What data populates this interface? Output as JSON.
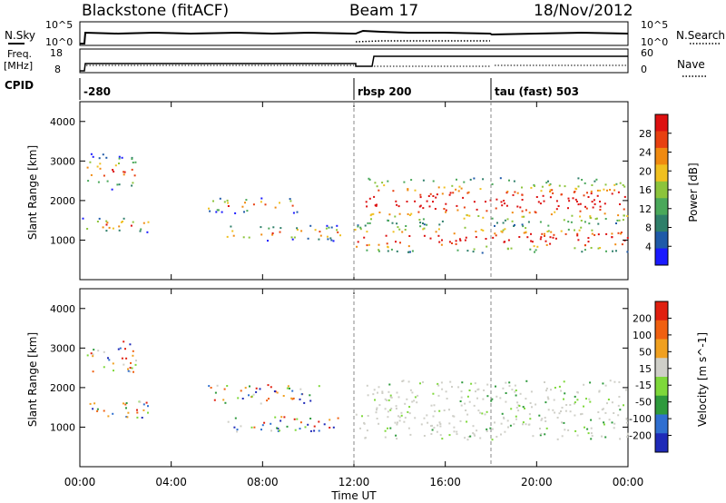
{
  "header": {
    "station": "Blackstone (fitACF)",
    "beam": "Beam 17",
    "date": "18/Nov/2012"
  },
  "sky_panel": {
    "left_label": "N.Sky",
    "right_label": "N.Search",
    "left_ticks": [
      "10^5",
      "10^0"
    ],
    "right_ticks": [
      "10^5",
      "10^0"
    ]
  },
  "freq_panel": {
    "left_label_line1": "Freq.",
    "left_label_line2": "[MHz]",
    "right_label": "Nave",
    "left_ticks": [
      "18",
      "8"
    ],
    "right_ticks": [
      "60",
      "0"
    ]
  },
  "cpid_panel": {
    "label": "CPID",
    "segments": [
      {
        "start_hour": 0,
        "text": "-280"
      },
      {
        "start_hour": 12,
        "text": "rbsp 200"
      },
      {
        "start_hour": 18,
        "text": "tau (fast) 503"
      }
    ]
  },
  "time_axis": {
    "label": "Time UT",
    "range_hours": [
      0,
      24
    ],
    "ticks": [
      {
        "hour": 0,
        "label": "00:00"
      },
      {
        "hour": 4,
        "label": "04:00"
      },
      {
        "hour": 8,
        "label": "08:00"
      },
      {
        "hour": 12,
        "label": "12:00"
      },
      {
        "hour": 16,
        "label": "16:00"
      },
      {
        "hour": 20,
        "label": "20:00"
      },
      {
        "hour": 24,
        "label": "00:00"
      }
    ]
  },
  "chart_data": [
    {
      "type": "heatmap",
      "ylabel": "Slant Range [km]",
      "ylim": [
        0,
        4500
      ],
      "yticks": [
        1000,
        2000,
        3000,
        4000
      ],
      "colorbar": {
        "label": "Power [dB]",
        "range": [
          0,
          32
        ],
        "ticks": [
          4,
          8,
          12,
          16,
          20,
          24,
          28
        ],
        "colors": [
          "#1a1aff",
          "#1f5aa8",
          "#2f7f6a",
          "#4aa85a",
          "#8cc43c",
          "#f0c020",
          "#f08a10",
          "#e84010",
          "#dd1010"
        ]
      },
      "scatter_regions": [
        {
          "name": "band_a",
          "hours": [
            0.1,
            3.2
          ],
          "range_km": [
            1200,
            1600
          ]
        },
        {
          "name": "band_b",
          "hours": [
            0.3,
            2.5
          ],
          "range_km": [
            2300,
            3200
          ]
        },
        {
          "name": "band_c",
          "hours": [
            5.5,
            9.5
          ],
          "range_km": [
            1700,
            2100
          ]
        },
        {
          "name": "band_d",
          "hours": [
            6.0,
            11.5
          ],
          "range_km": [
            1000,
            1400
          ]
        },
        {
          "name": "band_e",
          "hours": [
            12.0,
            24.0
          ],
          "range_km": [
            700,
            1400
          ]
        },
        {
          "name": "band_f",
          "hours": [
            12.5,
            24.0
          ],
          "range_km": [
            1400,
            2600
          ]
        }
      ]
    },
    {
      "type": "heatmap",
      "ylabel": "Slant Range [km]",
      "ylim": [
        0,
        4500
      ],
      "yticks": [
        1000,
        2000,
        3000,
        4000
      ],
      "colorbar": {
        "label": "Velocity [m s^-1]",
        "ticks": [
          "200",
          "100",
          "50",
          "15",
          "-15",
          "-50",
          "-100",
          "-200"
        ],
        "colors": [
          "#1e2ab8",
          "#2f6fd0",
          "#2e9a3c",
          "#7ed83a",
          "#cfcfc8",
          "#f0a020",
          "#f06010",
          "#e02010"
        ]
      },
      "scatter_regions": [
        {
          "name": "band_a",
          "hours": [
            0.1,
            3.0
          ],
          "range_km": [
            1200,
            1700
          ]
        },
        {
          "name": "band_b",
          "hours": [
            0.3,
            2.5
          ],
          "range_km": [
            2400,
            3200
          ]
        },
        {
          "name": "band_c",
          "hours": [
            5.5,
            10.5
          ],
          "range_km": [
            1600,
            2100
          ]
        },
        {
          "name": "band_d",
          "hours": [
            6.0,
            11.5
          ],
          "range_km": [
            900,
            1300
          ]
        },
        {
          "name": "band_e",
          "hours": [
            12.0,
            24.0
          ],
          "range_km": [
            700,
            1400
          ]
        },
        {
          "name": "band_f",
          "hours": [
            12.5,
            24.0
          ],
          "range_km": [
            1400,
            2200
          ]
        }
      ]
    }
  ]
}
